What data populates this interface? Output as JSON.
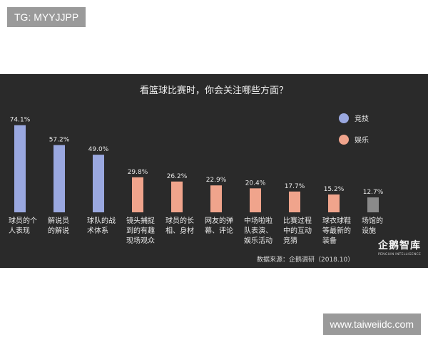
{
  "tags": {
    "top": "TG: MYYJJPP",
    "bottom": "www.taiweiidc.com"
  },
  "source": "数据来源：企鹅调研（2018.10）",
  "logo": {
    "name": "企鹅智库",
    "sub": "PENGUIN INTELLIGENCE"
  },
  "colors": {
    "sports": "#9aa8e0",
    "entertainment": "#f0a48c",
    "facilities": "#8a8a8a",
    "panel": "#2a2a2a"
  },
  "chart_data": {
    "type": "bar",
    "title": "看篮球比赛时，你会关注哪些方面？",
    "categories": [
      [
        "球员的个",
        "人表现"
      ],
      [
        "解说员",
        "的解说"
      ],
      [
        "球队的战",
        "术体系"
      ],
      [
        "镜头捕捉",
        "到的有趣",
        "现场观众"
      ],
      [
        "球员的长",
        "相、身材"
      ],
      [
        "网友的弹",
        "幕、评论"
      ],
      [
        "中场啦啦",
        "队表演、",
        "娱乐活动"
      ],
      [
        "比赛过程",
        "中的互动",
        "竞猜"
      ],
      [
        "球衣球鞋",
        "等最新的",
        "装备"
      ],
      [
        "场馆的",
        "设施"
      ]
    ],
    "values": [
      74.1,
      57.2,
      49.0,
      29.8,
      26.2,
      22.9,
      20.4,
      17.7,
      15.2,
      12.7
    ],
    "value_labels": [
      "74.1%",
      "57.2%",
      "49.0%",
      "29.8%",
      "26.2%",
      "22.9%",
      "20.4%",
      "17.7%",
      "15.2%",
      "12.7%"
    ],
    "groups": [
      "sports",
      "sports",
      "sports",
      "entertainment",
      "entertainment",
      "entertainment",
      "entertainment",
      "entertainment",
      "entertainment",
      "facilities"
    ],
    "legend": [
      {
        "key": "sports",
        "label": "竞技"
      },
      {
        "key": "entertainment",
        "label": "娱乐"
      }
    ],
    "legend_position": "top-right",
    "ylim": [
      0,
      80
    ],
    "grid": false
  }
}
